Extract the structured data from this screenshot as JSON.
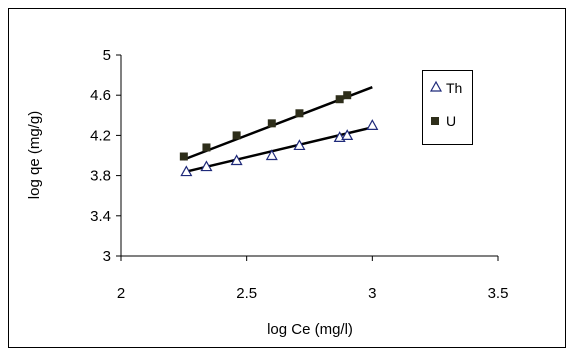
{
  "chart_data": {
    "type": "scatter",
    "xlabel": "log Ce (mg/l)",
    "ylabel": "log qe (mg/g)",
    "xlim": [
      2,
      3.5
    ],
    "ylim": [
      3,
      5
    ],
    "x_ticks": [
      2,
      2.5,
      3,
      3.5
    ],
    "x_tick_labels": [
      "2",
      "2.5",
      "3",
      "3.5"
    ],
    "y_ticks": [
      3,
      3.4,
      3.8,
      4.2,
      4.6,
      5
    ],
    "y_tick_labels": [
      "3",
      "3.4",
      "3.8",
      "4.2",
      "4.6",
      "5"
    ],
    "grid": false,
    "legend_position": "right",
    "series": [
      {
        "name": "Th",
        "marker": "open-triangle",
        "color": "#1F2A7A",
        "points": [
          {
            "x": 2.26,
            "y": 3.84
          },
          {
            "x": 2.34,
            "y": 3.89
          },
          {
            "x": 2.46,
            "y": 3.95
          },
          {
            "x": 2.6,
            "y": 4.0
          },
          {
            "x": 2.71,
            "y": 4.1
          },
          {
            "x": 2.87,
            "y": 4.18
          },
          {
            "x": 2.9,
            "y": 4.2
          },
          {
            "x": 3.0,
            "y": 4.3
          }
        ],
        "trendline": {
          "x": [
            2.26,
            3.0
          ],
          "y": [
            3.84,
            4.28
          ]
        }
      },
      {
        "name": "U",
        "marker": "filled-square",
        "color": "#2E2E1A",
        "points": [
          {
            "x": 2.25,
            "y": 3.99
          },
          {
            "x": 2.34,
            "y": 4.08
          },
          {
            "x": 2.46,
            "y": 4.2
          },
          {
            "x": 2.6,
            "y": 4.32
          },
          {
            "x": 2.71,
            "y": 4.42
          },
          {
            "x": 2.87,
            "y": 4.56
          },
          {
            "x": 2.9,
            "y": 4.6
          }
        ],
        "trendline": {
          "x": [
            2.25,
            3.0
          ],
          "y": [
            3.96,
            4.68
          ]
        }
      }
    ]
  }
}
